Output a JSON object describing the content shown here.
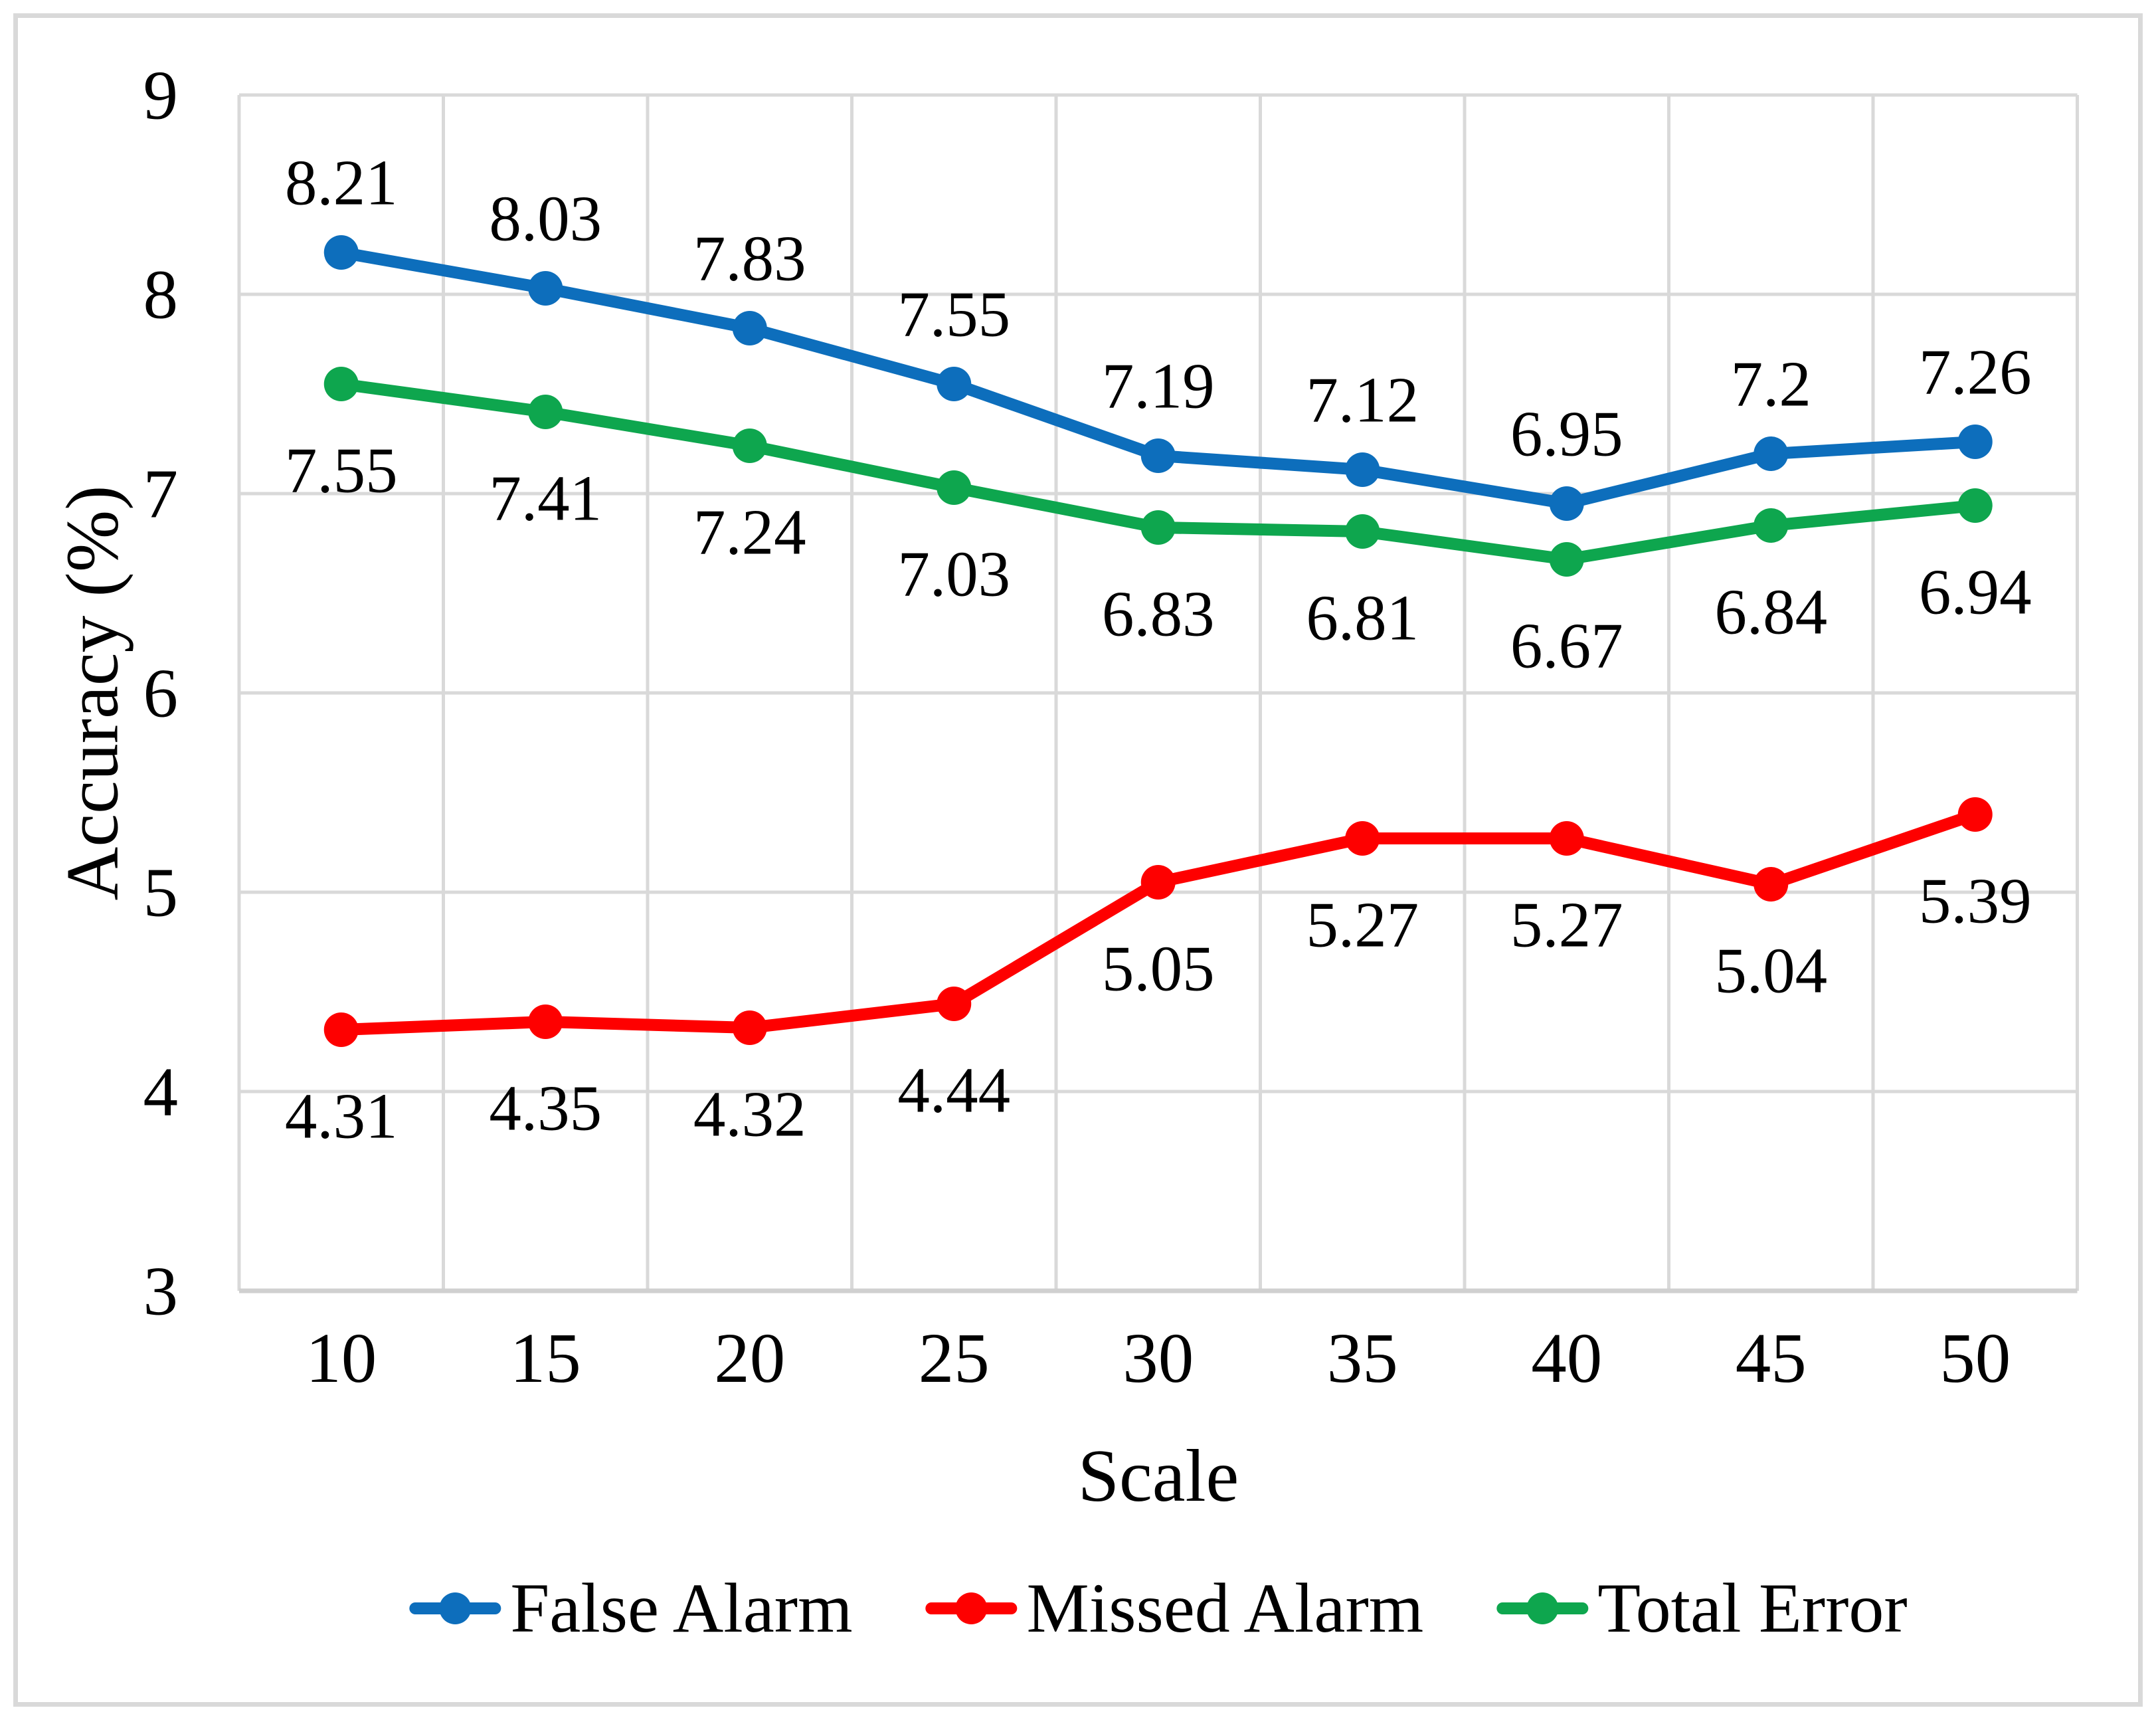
{
  "figure": {
    "background": "#ffffff",
    "border_color": "#d9d9d9"
  },
  "colors": {
    "gridline": "#d9d9d9",
    "axis_line": "#d0d0d0",
    "text": "#000000"
  },
  "chart_data": {
    "type": "line",
    "title": "",
    "x_title": "Scale",
    "y_title": "Accuracy (%)",
    "categories": [
      10,
      15,
      20,
      25,
      30,
      35,
      40,
      45,
      50
    ],
    "y_axis": {
      "min": 3,
      "max": 9,
      "tick_step": 1,
      "ticks": [
        9,
        8,
        7,
        6,
        5,
        4,
        3
      ]
    },
    "grid": true,
    "legend_position": "bottom",
    "marker": "circle",
    "series": [
      {
        "name": "False Alarm",
        "color": "#0d6ebc",
        "label_position": "above",
        "values": [
          8.21,
          8.03,
          7.83,
          7.55,
          7.19,
          7.12,
          6.95,
          7.2,
          7.26
        ]
      },
      {
        "name": "Missed Alarm",
        "color": "#fe0000",
        "label_position": "below",
        "values": [
          4.31,
          4.35,
          4.32,
          4.44,
          5.05,
          5.27,
          5.27,
          5.04,
          5.39
        ]
      },
      {
        "name": "Total Error",
        "color": "#0ea64e",
        "label_position": "below",
        "values": [
          7.55,
          7.41,
          7.24,
          7.03,
          6.83,
          6.81,
          6.67,
          6.84,
          6.94
        ]
      }
    ]
  },
  "legend": {
    "items": [
      {
        "label": "False Alarm",
        "color": "#0d6ebc"
      },
      {
        "label": "Missed Alarm",
        "color": "#fe0000"
      },
      {
        "label": "Total Error",
        "color": "#0ea64e"
      }
    ]
  }
}
